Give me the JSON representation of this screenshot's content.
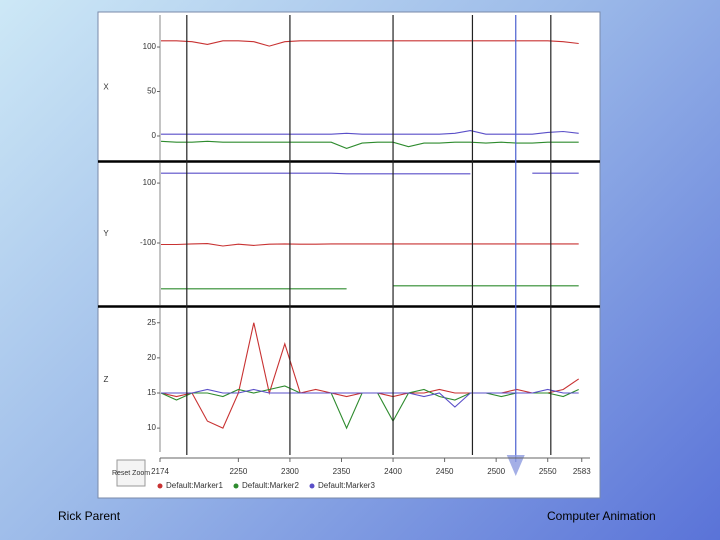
{
  "chart_data": [
    {
      "type": "line",
      "ylabel": "X",
      "ylim": [
        -27,
        136
      ],
      "yticks": [
        0,
        50,
        100
      ],
      "x": [
        2175,
        2190,
        2205,
        2220,
        2235,
        2250,
        2265,
        2280,
        2295,
        2310,
        2325,
        2340,
        2355,
        2370,
        2385,
        2400,
        2415,
        2430,
        2445,
        2460,
        2475,
        2490,
        2505,
        2520,
        2535,
        2550,
        2565,
        2580
      ],
      "series": [
        {
          "color": "#c83232",
          "values": [
            107,
            107,
            106,
            103,
            107,
            107,
            106,
            101,
            106,
            107,
            107,
            107,
            107,
            107,
            107,
            107,
            107,
            107,
            107,
            107,
            107,
            107,
            107,
            107,
            107,
            107,
            106,
            104
          ]
        },
        {
          "color": "#5a4fc8",
          "values": [
            2,
            2,
            2,
            2,
            2,
            2,
            2,
            2,
            2,
            2,
            2,
            2,
            3,
            2,
            2,
            2,
            2,
            2,
            2,
            3,
            6,
            2,
            2,
            2,
            2,
            4,
            5,
            3
          ]
        },
        {
          "color": "#2e8b2e",
          "values": [
            -6,
            -7,
            -7,
            -6,
            -7,
            -7,
            -7,
            -7,
            -7,
            -7,
            -7,
            -7,
            -14,
            -8,
            -7,
            -7,
            -12,
            -8,
            -8,
            -7,
            -7,
            -8,
            -7,
            -8,
            -8,
            -7,
            -7,
            -7
          ]
        }
      ]
    },
    {
      "type": "line",
      "ylabel": "Y",
      "ylim": [
        -307,
        167
      ],
      "yticks": [
        -100,
        100
      ],
      "x": [
        2175,
        2190,
        2205,
        2220,
        2235,
        2250,
        2265,
        2280,
        2295,
        2310,
        2325,
        2340,
        2355,
        2370,
        2385,
        2400,
        2415,
        2430,
        2445,
        2460,
        2475,
        2490,
        2505,
        2520,
        2535,
        2550,
        2565,
        2580
      ],
      "series": [
        {
          "color": "#c83232",
          "values": [
            -105,
            -105,
            -103,
            -102,
            -110,
            -104,
            -108,
            -104,
            -103,
            -104,
            -104,
            -103,
            -103,
            -103,
            -103,
            -103,
            -103,
            -103,
            -103,
            -103,
            -103,
            -103,
            -103,
            -103,
            -103,
            -103,
            -103,
            -103
          ]
        },
        {
          "color": "#5a4fc8",
          "values": [
            133,
            133,
            133,
            133,
            133,
            133,
            133,
            133,
            133,
            133,
            133,
            133,
            131,
            131,
            131,
            131,
            131,
            131,
            131,
            131,
            131,
            null,
            null,
            null,
            133,
            133,
            133,
            133
          ]
        },
        {
          "color": "#2e8b2e",
          "values": [
            -253,
            -253,
            -253,
            -253,
            -253,
            -253,
            -253,
            -253,
            -253,
            -253,
            -253,
            -253,
            -253,
            null,
            null,
            -243,
            -243,
            -243,
            -243,
            -243,
            -243,
            -243,
            -243,
            -243,
            -243,
            -243,
            -243,
            -243
          ]
        }
      ]
    },
    {
      "type": "line",
      "ylabel": "Z",
      "ylim": [
        6.6,
        27.1
      ],
      "yticks": [
        10,
        15,
        20,
        25
      ],
      "xlim": [
        2174,
        2591
      ],
      "xticks": [
        2174,
        2250,
        2300,
        2350,
        2400,
        2450,
        2500,
        2550,
        2583
      ],
      "markers": [
        2200,
        2300,
        2400,
        2477,
        2553
      ],
      "cursor": 2519,
      "x": [
        2175,
        2190,
        2205,
        2220,
        2235,
        2250,
        2265,
        2280,
        2295,
        2310,
        2325,
        2340,
        2355,
        2370,
        2385,
        2400,
        2415,
        2430,
        2445,
        2460,
        2475,
        2490,
        2505,
        2520,
        2535,
        2550,
        2565,
        2580
      ],
      "series": [
        {
          "name": "Default:Marker1",
          "color": "#c83232",
          "values": [
            15,
            14.5,
            15,
            11,
            10,
            15,
            25,
            15,
            22,
            15,
            15.5,
            15,
            14.5,
            15,
            15,
            14.5,
            15,
            15,
            15.5,
            15,
            15,
            15,
            15,
            15.5,
            15,
            15,
            15.5,
            17
          ]
        },
        {
          "name": "Default:Marker2",
          "color": "#2e8b2e",
          "values": [
            15,
            14,
            15,
            15,
            14.5,
            15.5,
            15,
            15.5,
            16,
            15,
            15,
            15,
            10,
            15,
            15,
            11,
            15,
            15.5,
            14.5,
            14,
            15,
            15,
            14.5,
            15,
            15,
            15,
            14.5,
            15.5
          ]
        },
        {
          "name": "Default:Marker3",
          "color": "#5a4fc8",
          "values": [
            15,
            15,
            15,
            15.5,
            15,
            15,
            15.5,
            15,
            15,
            15,
            15,
            15,
            15,
            15,
            15,
            15,
            15,
            14.5,
            15,
            13,
            15,
            15,
            15,
            15,
            15,
            15.5,
            15,
            15
          ]
        }
      ]
    }
  ],
  "controls": {
    "reset": "Reset Zoom"
  },
  "footer": {
    "left": "Rick Parent",
    "right": "Computer Animation"
  }
}
